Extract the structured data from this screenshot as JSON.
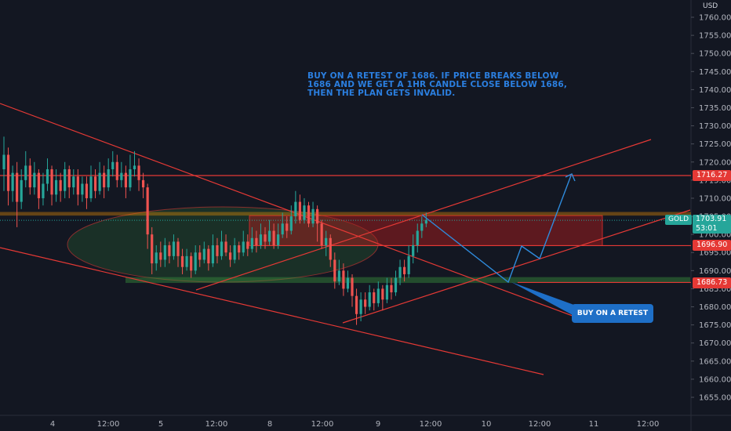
{
  "chart_data": {
    "type": "candlestick",
    "symbol": "GOLD",
    "currency": "USD",
    "last_price": "1703.91",
    "countdown": "53:01",
    "ylim": [
      1651,
      1763
    ],
    "y_ticks": [
      "1760.00",
      "1755.00",
      "1750.00",
      "1745.00",
      "1740.00",
      "1735.00",
      "1730.00",
      "1725.00",
      "1720.00",
      "1715.00",
      "1710.00",
      "1705.00",
      "1700.00",
      "1695.00",
      "1690.00",
      "1685.00",
      "1680.00",
      "1675.00",
      "1670.00",
      "1665.00",
      "1660.00",
      "1655.00"
    ],
    "x_ticks": [
      "4",
      "12:00",
      "5",
      "12:00",
      "8",
      "12:00",
      "9",
      "12:00",
      "10",
      "12:00",
      "11",
      "12:00"
    ],
    "levels": [
      {
        "label": "1716.27",
        "value": 1716.27,
        "color": "#e53935"
      },
      {
        "label": "1696.90",
        "value": 1696.9,
        "color": "#e53935"
      },
      {
        "label": "1686.73",
        "value": 1686.73,
        "color": "#e53935"
      }
    ],
    "annotation": "BUY ON A RETEST OF 1686. IF PRICE BREAKS BELOW 1686 AND WE GET A 1HR CANDLE CLOSE BELOW 1686, THEN THE PLAN GETS INVALID.",
    "callout": "BUY ON A RETEST",
    "candles": [
      {
        "t": 0,
        "o": 1718,
        "c": 1722,
        "h": 1727,
        "l": 1712
      },
      {
        "t": 1,
        "o": 1722,
        "c": 1712,
        "h": 1724,
        "l": 1708
      },
      {
        "t": 2,
        "o": 1712,
        "c": 1717,
        "h": 1719,
        "l": 1709
      },
      {
        "t": 3,
        "o": 1717,
        "c": 1709,
        "h": 1720,
        "l": 1702
      },
      {
        "t": 4,
        "o": 1709,
        "c": 1715,
        "h": 1718,
        "l": 1707
      },
      {
        "t": 5,
        "o": 1715,
        "c": 1719,
        "h": 1723,
        "l": 1713
      },
      {
        "t": 6,
        "o": 1719,
        "c": 1713,
        "h": 1721,
        "l": 1711
      },
      {
        "t": 7,
        "o": 1713,
        "c": 1717,
        "h": 1720,
        "l": 1711
      },
      {
        "t": 8,
        "o": 1717,
        "c": 1710,
        "h": 1718,
        "l": 1707
      },
      {
        "t": 9,
        "o": 1710,
        "c": 1714,
        "h": 1717,
        "l": 1708
      },
      {
        "t": 10,
        "o": 1714,
        "c": 1718,
        "h": 1721,
        "l": 1712
      },
      {
        "t": 11,
        "o": 1718,
        "c": 1711,
        "h": 1719,
        "l": 1708
      },
      {
        "t": 12,
        "o": 1711,
        "c": 1715,
        "h": 1718,
        "l": 1709
      },
      {
        "t": 13,
        "o": 1715,
        "c": 1712,
        "h": 1717,
        "l": 1709
      },
      {
        "t": 14,
        "o": 1712,
        "c": 1718,
        "h": 1720,
        "l": 1710
      },
      {
        "t": 15,
        "o": 1718,
        "c": 1713,
        "h": 1719,
        "l": 1710
      },
      {
        "t": 16,
        "o": 1713,
        "c": 1716,
        "h": 1718,
        "l": 1711
      },
      {
        "t": 17,
        "o": 1716,
        "c": 1711,
        "h": 1718,
        "l": 1708
      },
      {
        "t": 18,
        "o": 1711,
        "c": 1714,
        "h": 1716,
        "l": 1709
      },
      {
        "t": 19,
        "o": 1714,
        "c": 1710,
        "h": 1716,
        "l": 1707
      },
      {
        "t": 20,
        "o": 1710,
        "c": 1716,
        "h": 1719,
        "l": 1709
      },
      {
        "t": 21,
        "o": 1716,
        "c": 1712,
        "h": 1718,
        "l": 1710
      },
      {
        "t": 22,
        "o": 1712,
        "c": 1717,
        "h": 1720,
        "l": 1711
      },
      {
        "t": 23,
        "o": 1717,
        "c": 1713,
        "h": 1719,
        "l": 1710
      },
      {
        "t": 24,
        "o": 1713,
        "c": 1718,
        "h": 1721,
        "l": 1712
      },
      {
        "t": 25,
        "o": 1718,
        "c": 1720,
        "h": 1723,
        "l": 1716
      },
      {
        "t": 26,
        "o": 1720,
        "c": 1715,
        "h": 1722,
        "l": 1713
      },
      {
        "t": 27,
        "o": 1715,
        "c": 1717,
        "h": 1720,
        "l": 1713
      },
      {
        "t": 28,
        "o": 1717,
        "c": 1713,
        "h": 1719,
        "l": 1710
      },
      {
        "t": 29,
        "o": 1713,
        "c": 1718,
        "h": 1722,
        "l": 1712
      },
      {
        "t": 30,
        "o": 1718,
        "c": 1719,
        "h": 1723,
        "l": 1716
      },
      {
        "t": 31,
        "o": 1719,
        "c": 1715,
        "h": 1721,
        "l": 1712
      },
      {
        "t": 32,
        "o": 1715,
        "c": 1713,
        "h": 1717,
        "l": 1710
      },
      {
        "t": 33,
        "o": 1713,
        "c": 1700,
        "h": 1714,
        "l": 1696
      },
      {
        "t": 34,
        "o": 1700,
        "c": 1692,
        "h": 1702,
        "l": 1689
      },
      {
        "t": 35,
        "o": 1692,
        "c": 1695,
        "h": 1697,
        "l": 1690
      },
      {
        "t": 36,
        "o": 1695,
        "c": 1693,
        "h": 1698,
        "l": 1691
      },
      {
        "t": 37,
        "o": 1693,
        "c": 1697,
        "h": 1699,
        "l": 1691
      },
      {
        "t": 38,
        "o": 1697,
        "c": 1694,
        "h": 1698,
        "l": 1692
      },
      {
        "t": 39,
        "o": 1694,
        "c": 1698,
        "h": 1700,
        "l": 1693
      },
      {
        "t": 40,
        "o": 1698,
        "c": 1694,
        "h": 1699,
        "l": 1691
      },
      {
        "t": 41,
        "o": 1694,
        "c": 1691,
        "h": 1696,
        "l": 1689
      },
      {
        "t": 42,
        "o": 1691,
        "c": 1694,
        "h": 1696,
        "l": 1690
      },
      {
        "t": 43,
        "o": 1694,
        "c": 1690,
        "h": 1695,
        "l": 1688
      },
      {
        "t": 44,
        "o": 1690,
        "c": 1695,
        "h": 1697,
        "l": 1689
      },
      {
        "t": 45,
        "o": 1695,
        "c": 1693,
        "h": 1697,
        "l": 1691
      },
      {
        "t": 46,
        "o": 1693,
        "c": 1696,
        "h": 1698,
        "l": 1692
      },
      {
        "t": 47,
        "o": 1696,
        "c": 1692,
        "h": 1697,
        "l": 1690
      },
      {
        "t": 48,
        "o": 1692,
        "c": 1697,
        "h": 1700,
        "l": 1691
      },
      {
        "t": 49,
        "o": 1697,
        "c": 1694,
        "h": 1699,
        "l": 1692
      },
      {
        "t": 50,
        "o": 1694,
        "c": 1698,
        "h": 1701,
        "l": 1693
      },
      {
        "t": 51,
        "o": 1698,
        "c": 1695,
        "h": 1700,
        "l": 1694
      },
      {
        "t": 52,
        "o": 1695,
        "c": 1693,
        "h": 1697,
        "l": 1691
      },
      {
        "t": 53,
        "o": 1693,
        "c": 1697,
        "h": 1699,
        "l": 1692
      },
      {
        "t": 54,
        "o": 1697,
        "c": 1695,
        "h": 1698,
        "l": 1693
      },
      {
        "t": 55,
        "o": 1695,
        "c": 1698,
        "h": 1701,
        "l": 1694
      },
      {
        "t": 56,
        "o": 1698,
        "c": 1696,
        "h": 1700,
        "l": 1694
      },
      {
        "t": 57,
        "o": 1696,
        "c": 1699,
        "h": 1702,
        "l": 1695
      },
      {
        "t": 58,
        "o": 1699,
        "c": 1697,
        "h": 1701,
        "l": 1695
      },
      {
        "t": 59,
        "o": 1697,
        "c": 1700,
        "h": 1703,
        "l": 1696
      },
      {
        "t": 60,
        "o": 1700,
        "c": 1698,
        "h": 1702,
        "l": 1696
      },
      {
        "t": 61,
        "o": 1698,
        "c": 1701,
        "h": 1704,
        "l": 1697
      },
      {
        "t": 62,
        "o": 1701,
        "c": 1697,
        "h": 1703,
        "l": 1696
      },
      {
        "t": 63,
        "o": 1697,
        "c": 1700,
        "h": 1703,
        "l": 1696
      },
      {
        "t": 64,
        "o": 1700,
        "c": 1703,
        "h": 1706,
        "l": 1699
      },
      {
        "t": 65,
        "o": 1703,
        "c": 1701,
        "h": 1705,
        "l": 1699
      },
      {
        "t": 66,
        "o": 1701,
        "c": 1705,
        "h": 1708,
        "l": 1700
      },
      {
        "t": 67,
        "o": 1705,
        "c": 1709,
        "h": 1712,
        "l": 1703
      },
      {
        "t": 68,
        "o": 1709,
        "c": 1704,
        "h": 1711,
        "l": 1703
      },
      {
        "t": 69,
        "o": 1704,
        "c": 1708,
        "h": 1710,
        "l": 1703
      },
      {
        "t": 70,
        "o": 1708,
        "c": 1703,
        "h": 1709,
        "l": 1702
      },
      {
        "t": 71,
        "o": 1703,
        "c": 1707,
        "h": 1709,
        "l": 1702
      },
      {
        "t": 72,
        "o": 1707,
        "c": 1703,
        "h": 1708,
        "l": 1698
      },
      {
        "t": 73,
        "o": 1703,
        "c": 1697,
        "h": 1704,
        "l": 1696
      },
      {
        "t": 74,
        "o": 1697,
        "c": 1699,
        "h": 1701,
        "l": 1694
      },
      {
        "t": 75,
        "o": 1699,
        "c": 1693,
        "h": 1700,
        "l": 1691
      },
      {
        "t": 76,
        "o": 1693,
        "c": 1687,
        "h": 1695,
        "l": 1685
      },
      {
        "t": 77,
        "o": 1687,
        "c": 1690,
        "h": 1693,
        "l": 1686
      },
      {
        "t": 78,
        "o": 1690,
        "c": 1685,
        "h": 1692,
        "l": 1683
      },
      {
        "t": 79,
        "o": 1685,
        "c": 1688,
        "h": 1690,
        "l": 1684
      },
      {
        "t": 80,
        "o": 1688,
        "c": 1683,
        "h": 1689,
        "l": 1680
      },
      {
        "t": 81,
        "o": 1683,
        "c": 1678,
        "h": 1685,
        "l": 1675
      },
      {
        "t": 82,
        "o": 1678,
        "c": 1682,
        "h": 1684,
        "l": 1676
      },
      {
        "t": 83,
        "o": 1682,
        "c": 1680,
        "h": 1684,
        "l": 1678
      },
      {
        "t": 84,
        "o": 1680,
        "c": 1684,
        "h": 1686,
        "l": 1679
      },
      {
        "t": 85,
        "o": 1684,
        "c": 1681,
        "h": 1685,
        "l": 1679
      },
      {
        "t": 86,
        "o": 1681,
        "c": 1685,
        "h": 1687,
        "l": 1680
      },
      {
        "t": 87,
        "o": 1685,
        "c": 1682,
        "h": 1686,
        "l": 1679
      },
      {
        "t": 88,
        "o": 1682,
        "c": 1686,
        "h": 1688,
        "l": 1681
      },
      {
        "t": 89,
        "o": 1686,
        "c": 1684,
        "h": 1688,
        "l": 1682
      },
      {
        "t": 90,
        "o": 1684,
        "c": 1688,
        "h": 1690,
        "l": 1683
      },
      {
        "t": 91,
        "o": 1688,
        "c": 1691,
        "h": 1693,
        "l": 1686
      },
      {
        "t": 92,
        "o": 1691,
        "c": 1689,
        "h": 1693,
        "l": 1687
      },
      {
        "t": 93,
        "o": 1689,
        "c": 1694,
        "h": 1697,
        "l": 1688
      },
      {
        "t": 94,
        "o": 1694,
        "c": 1697,
        "h": 1700,
        "l": 1692
      },
      {
        "t": 95,
        "o": 1697,
        "c": 1701,
        "h": 1703,
        "l": 1695
      },
      {
        "t": 96,
        "o": 1701,
        "c": 1703,
        "h": 1705,
        "l": 1699
      },
      {
        "t": 97,
        "o": 1703,
        "c": 1704,
        "h": 1706,
        "l": 1702
      }
    ]
  }
}
